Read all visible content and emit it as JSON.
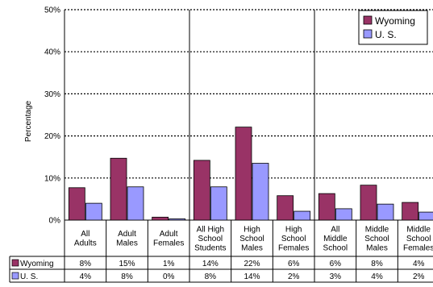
{
  "chart_data": {
    "type": "bar",
    "ylabel": "Percentage",
    "ylim": [
      0,
      50
    ],
    "yticks": [
      "0%",
      "10%",
      "20%",
      "30%",
      "40%",
      "50%"
    ],
    "grid": true,
    "legend_position": "top-right",
    "categories": [
      [
        "All",
        "Adults"
      ],
      [
        "Adult",
        "Males"
      ],
      [
        "Adult",
        "Females"
      ],
      [
        "All High",
        "School",
        "Students"
      ],
      [
        "High",
        "School",
        "Males"
      ],
      [
        "High",
        "School",
        "Females"
      ],
      [
        "All",
        "Middle",
        "School"
      ],
      [
        "Middle",
        "School",
        "Males"
      ],
      [
        "Middle",
        "School",
        "Females"
      ]
    ],
    "series": [
      {
        "name": "Wyoming",
        "color": "#993366",
        "values": [
          7.7,
          14.7,
          0.7,
          14.2,
          22.1,
          5.8,
          6.3,
          8.3,
          4.2
        ],
        "labels": [
          "8%",
          "15%",
          "1%",
          "14%",
          "22%",
          "6%",
          "6%",
          "8%",
          "4%"
        ]
      },
      {
        "name": "U. S.",
        "color": "#9999FF",
        "values": [
          4.0,
          7.9,
          0.3,
          7.9,
          13.5,
          2.1,
          2.7,
          3.8,
          1.9
        ],
        "labels": [
          "4%",
          "8%",
          "0%",
          "8%",
          "14%",
          "2%",
          "3%",
          "4%",
          "2%"
        ]
      }
    ]
  }
}
